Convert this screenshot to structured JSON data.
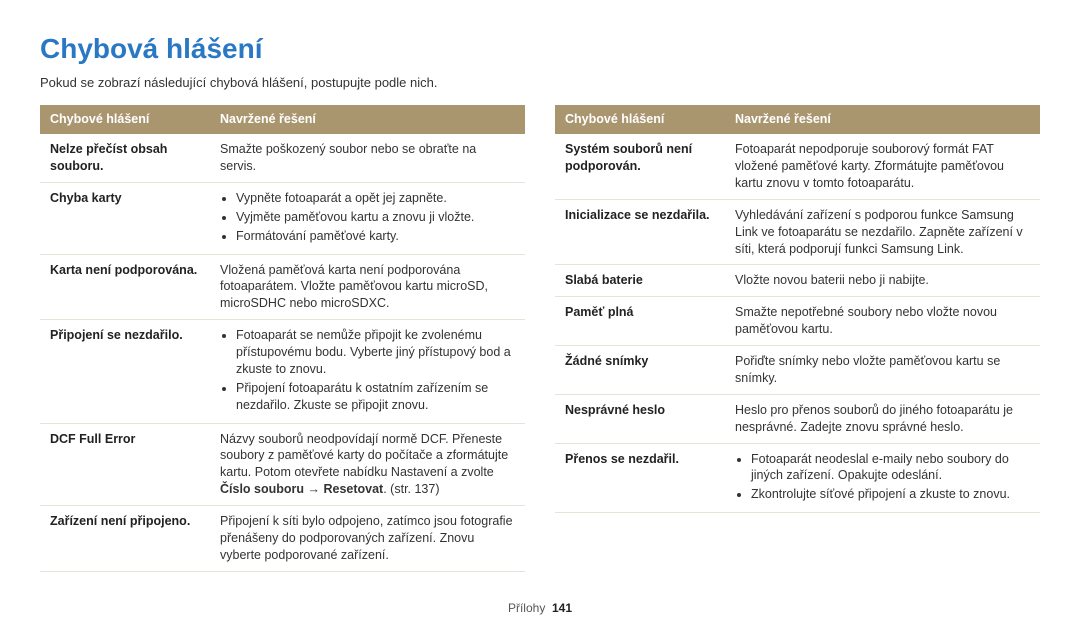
{
  "title": "Chybová hlášení",
  "intro": "Pokud se zobrazí následující chybová hlášení, postupujte podle nich.",
  "headers": {
    "col1": "Chybové hlášení",
    "col2": "Navržené řešení"
  },
  "left_rows": [
    {
      "label": "Nelze přečíst obsah souboru.",
      "text": "Smažte poškozený soubor nebo se obraťte na servis."
    },
    {
      "label": "Chyba karty",
      "bullets": [
        "Vypněte fotoaparát a opět jej zapněte.",
        "Vyjměte paměťovou kartu a znovu ji vložte.",
        "Formátování paměťové karty."
      ]
    },
    {
      "label": "Karta není podporována.",
      "text": "Vložená paměťová karta není podporována fotoaparátem. Vložte paměťovou kartu microSD, microSDHC nebo microSDXC."
    },
    {
      "label": "Připojení se nezdařilo.",
      "bullets": [
        "Fotoaparát se nemůže připojit ke zvolenému přístupovému bodu. Vyberte jiný přístupový bod a zkuste to znovu.",
        "Připojení fotoaparátu k ostatním zařízením se nezdařilo. Zkuste se připojit znovu."
      ]
    },
    {
      "label": "DCF Full Error",
      "rich": {
        "prefix": "Názvy souborů neodpovídají normě DCF. Přeneste soubory z paměťové karty do počítače a zformátujte kartu. Potom otevřete nabídku Nastavení a zvolte ",
        "bold": "Číslo souboru → Resetovat",
        "suffix": ". (str. 137)"
      }
    },
    {
      "label": "Zařízení není připojeno.",
      "text": "Připojení k síti bylo odpojeno, zatímco jsou fotografie přenášeny do podporovaných zařízení. Znovu vyberte podporované zařízení."
    }
  ],
  "right_rows": [
    {
      "label": "Systém souborů není podporován.",
      "text": "Fotoaparát nepodporuje souborový formát FAT vložené paměťové karty. Zformátujte paměťovou kartu znovu v tomto fotoaparátu."
    },
    {
      "label": "Inicializace se nezdařila.",
      "text": "Vyhledávání zařízení s podporou funkce Samsung Link ve fotoaparátu se nezdařilo. Zapněte zařízení v síti, která podporují funkci Samsung Link."
    },
    {
      "label": "Slabá baterie",
      "text": "Vložte novou baterii nebo ji nabijte."
    },
    {
      "label": "Paměť plná",
      "text": "Smažte nepotřebné soubory nebo vložte novou paměťovou kartu."
    },
    {
      "label": "Žádné snímky",
      "text": "Pořiďte snímky nebo vložte paměťovou kartu se snímky."
    },
    {
      "label": "Nesprávné heslo",
      "text": "Heslo pro přenos souborů do jiného fotoaparátu je nesprávné. Zadejte znovu správné heslo."
    },
    {
      "label": "Přenos se nezdařil.",
      "bullets": [
        "Fotoaparát neodeslal e-maily nebo soubory do jiných zařízení. Opakujte odeslání.",
        "Zkontrolujte síťové připojení a zkuste to znovu."
      ]
    }
  ],
  "footer": {
    "section": "Přílohy",
    "page": "141"
  }
}
